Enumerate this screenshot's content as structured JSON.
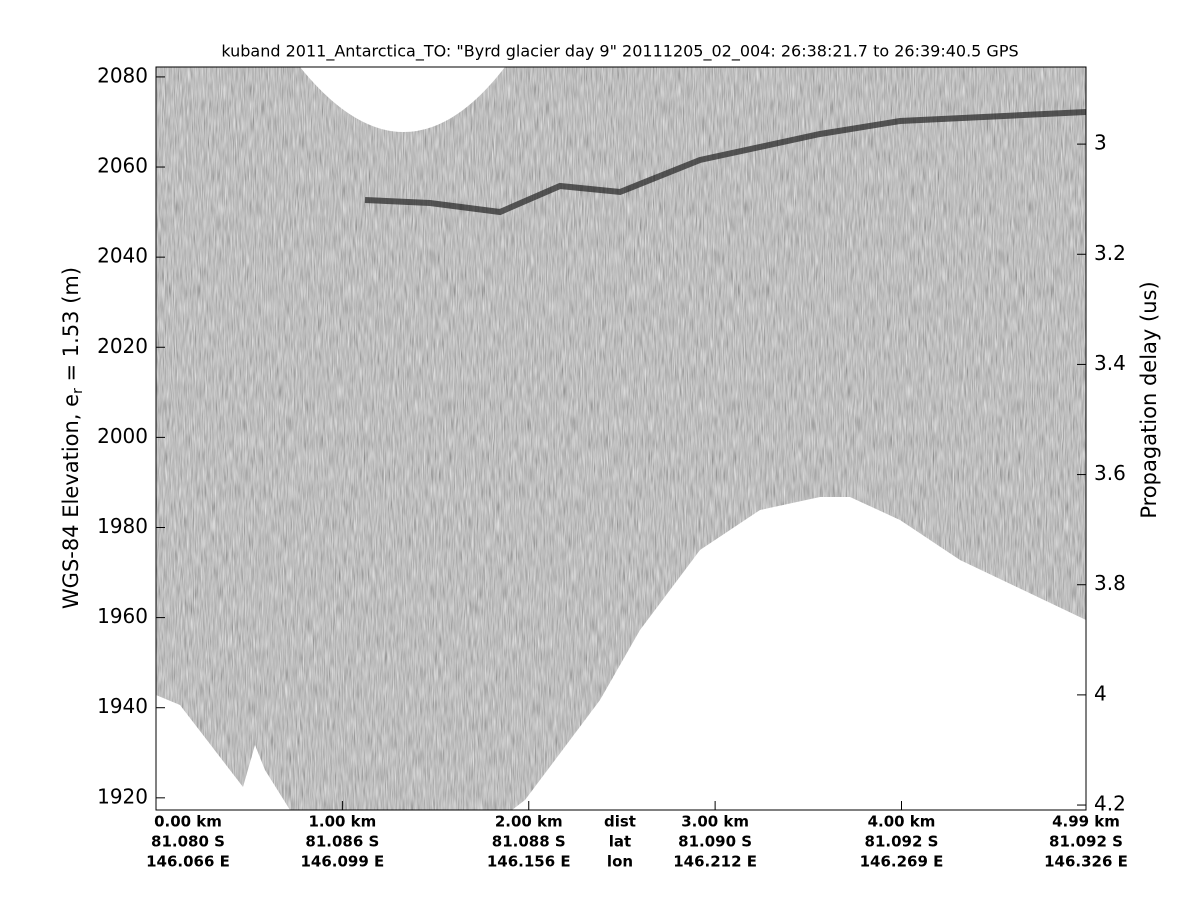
{
  "chart_data": {
    "type": "echogram",
    "title": "kuband 2011_Antarctica_TO: \"Byrd glacier day 9\"  20111205_02_004: 26:38:21.7 to 26:39:40.5 GPS",
    "ylabel": "WGS-84 Elevation, e",
    "ylabel_sub": "r",
    "ylabel_rest": " = 1.53 (m)",
    "y2label": "Propagation delay (us)",
    "xlim": [
      0,
      4.99
    ],
    "xticks": [
      {
        "value": 0,
        "label": "0.00 km"
      },
      {
        "value": 1,
        "label": "1.00 km"
      },
      {
        "value": 2,
        "label": "2.00 km"
      },
      {
        "value": 3,
        "label": "3.00 km"
      },
      {
        "value": 4,
        "label": "4.00 km"
      },
      {
        "value": 4.99,
        "label": "4.99 km"
      }
    ],
    "lat_labels": [
      "81.080 S",
      "81.086 S",
      "81.088 S",
      "81.090 S",
      "81.092 S",
      "81.092 S"
    ],
    "lon_labels": [
      "146.066 E",
      "146.099 E",
      "146.156 E",
      "146.212 E",
      "146.269 E",
      "146.326 E"
    ],
    "row_labels": [
      "dist",
      "lat",
      "lon"
    ],
    "ylim": [
      1917.3,
      2082.2
    ],
    "yticks": [
      1920,
      1940,
      1960,
      1980,
      2000,
      2020,
      2040,
      2060,
      2080
    ],
    "y2lim": [
      4.209,
      2.86
    ],
    "y2ticks": [
      3,
      3.2,
      3.4,
      3.6,
      3.8,
      4,
      4.2
    ]
  }
}
